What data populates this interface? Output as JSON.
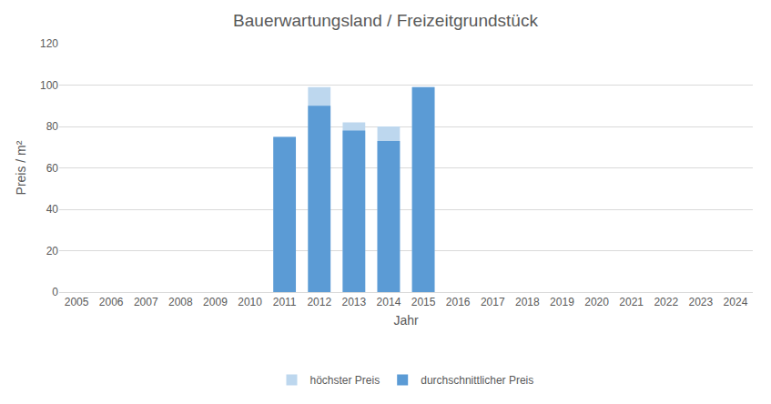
{
  "chart_data": {
    "type": "bar",
    "title": "Bauerwartungsland / Freizeitgrundstück",
    "x_label": "Jahr",
    "y_label": "Preis / m²",
    "categories": [
      "2005",
      "2006",
      "2007",
      "2008",
      "2009",
      "2010",
      "2011",
      "2012",
      "2013",
      "2014",
      "2015",
      "2016",
      "2017",
      "2018",
      "2019",
      "2020",
      "2021",
      "2022",
      "2023",
      "2024"
    ],
    "series": [
      {
        "name": "höchster Preis",
        "color": "#bdd7ee",
        "values": [
          null,
          null,
          null,
          null,
          null,
          null,
          75,
          99,
          82,
          80,
          99,
          null,
          null,
          null,
          null,
          null,
          null,
          null,
          null,
          null
        ]
      },
      {
        "name": "durchschnittlicher Preis",
        "color": "#5b9bd5",
        "values": [
          null,
          null,
          null,
          null,
          null,
          null,
          75,
          90,
          78,
          73,
          99,
          null,
          null,
          null,
          null,
          null,
          null,
          null,
          null,
          null
        ]
      }
    ],
    "stacked": false,
    "ylim": [
      0,
      120
    ],
    "yticks": [
      0,
      20,
      40,
      60,
      80,
      100,
      120
    ],
    "grid": true,
    "legend": "bottom"
  }
}
